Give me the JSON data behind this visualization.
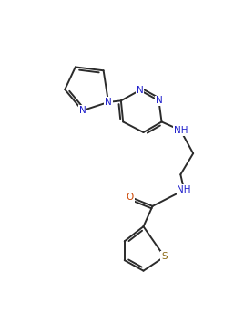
{
  "background_color": "#ffffff",
  "line_color": "#2b2b2b",
  "atom_color_N": "#2020cc",
  "atom_color_O": "#cc4400",
  "atom_color_S": "#8b6914",
  "line_width": 1.4,
  "font_size": 7.5,
  "fig_width": 2.57,
  "fig_height": 3.55,
  "dpi": 100,
  "xlim": [
    0,
    257
  ],
  "ylim": [
    0,
    355
  ]
}
